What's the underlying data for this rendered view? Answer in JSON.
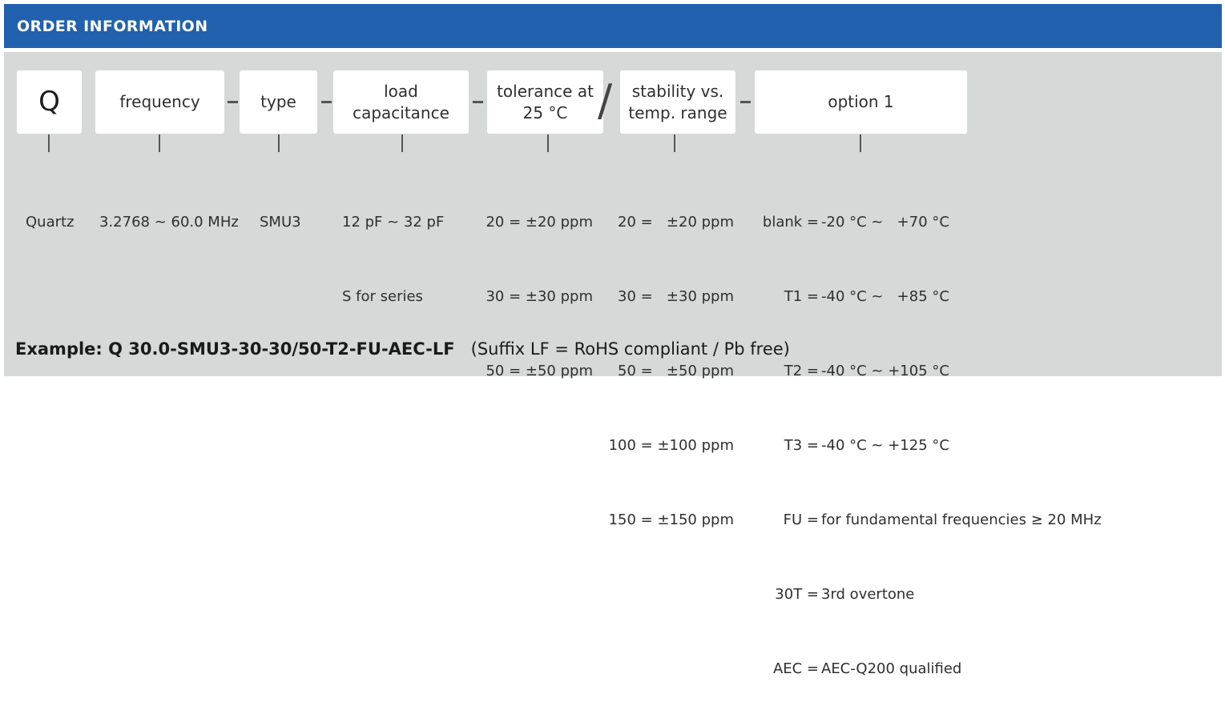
{
  "header": {
    "title": "ORDER INFORMATION"
  },
  "boxes": {
    "q": "Q",
    "frequency": "frequency",
    "type": "type",
    "load": "load capacitance",
    "tolerance_l1": "tolerance at",
    "tolerance_l2": "25 °C",
    "slash": "/",
    "stability_l1": "stability vs.",
    "stability_l2": "temp. range",
    "option": "option 1"
  },
  "values": {
    "q": [
      "Quartz"
    ],
    "frequency": [
      "3.2768 ~ 60.0 MHz"
    ],
    "type": [
      "SMU3"
    ],
    "load": [
      "12 pF ~ 32 pF",
      "S for series"
    ],
    "tolerance": [
      "20 = ±20 ppm",
      "30 = ±30 ppm",
      "50 = ±50 ppm"
    ],
    "stability": [
      "20 =   ±20 ppm",
      "30 =   ±30 ppm",
      "50 =   ±50 ppm",
      "100 = ±100 ppm",
      "150 = ±150 ppm"
    ],
    "option_codes": [
      "blank =",
      "T1 =",
      "T2 =",
      "T3 =",
      "FU =",
      "30T =",
      "AEC ="
    ],
    "option_desc": [
      "-20 °C ~   +70 °C",
      "-40 °C ~   +85 °C",
      "-40 °C ~ +105 °C",
      "-40 °C ~ +125 °C",
      "for fundamental frequencies ≥ 20 MHz",
      "3rd overtone",
      "AEC-Q200 qualified"
    ]
  },
  "example": {
    "label": "Example: Q 30.0-SMU3-30-30/50-T2-FU-AEC-LF",
    "note": "(Suffix LF = RoHS compliant / Pb free)"
  }
}
